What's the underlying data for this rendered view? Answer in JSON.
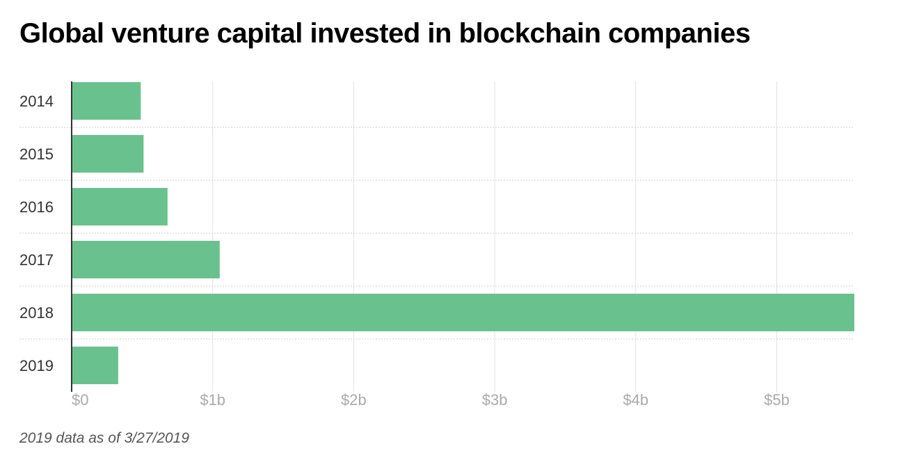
{
  "title": "Global venture capital invested in blockchain companies",
  "note": "2019 data as of 3/27/2019",
  "colors": {
    "bar": "#69c28d",
    "grid": "#e3e3e3",
    "row_separator": "#cccccc",
    "axis": "#333333",
    "y_tick_label": "#333333",
    "x_tick_label": "#aaaaaa"
  },
  "chart_data": {
    "type": "bar",
    "orientation": "horizontal",
    "title": "Global venture capital invested in blockchain companies",
    "categories": [
      "2014",
      "2015",
      "2016",
      "2017",
      "2018",
      "2019"
    ],
    "values": [
      0.49,
      0.51,
      0.68,
      1.05,
      5.55,
      0.33
    ],
    "value_unit": "billion USD",
    "xlim": [
      0,
      5.55
    ],
    "x_ticks": [
      0,
      1,
      2,
      3,
      4,
      5
    ],
    "x_tick_labels": [
      "$0",
      "$1b",
      "$2b",
      "$3b",
      "$4b",
      "$5b"
    ],
    "grid": true,
    "legend": "none"
  }
}
